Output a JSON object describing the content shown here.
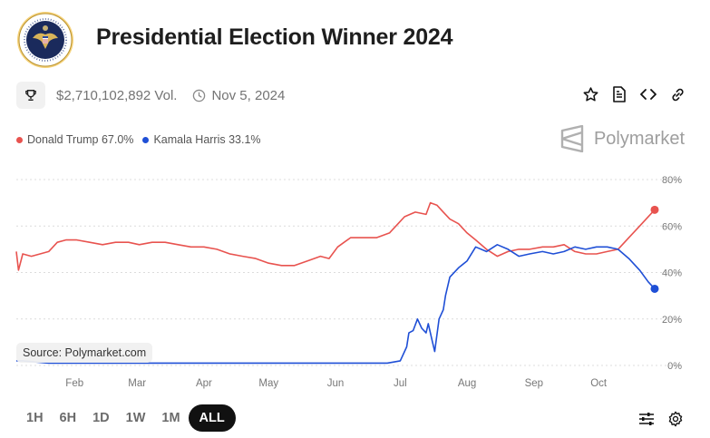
{
  "header": {
    "title": "Presidential Election Winner 2024",
    "seal_icon": "presidential-seal-icon"
  },
  "meta": {
    "volume": "$2,710,102,892 Vol.",
    "end_date": "Nov 5, 2024"
  },
  "legend": [
    {
      "label": "Donald Trump 67.0%",
      "color": "#e8534f"
    },
    {
      "label": "Kamala Harris 33.1%",
      "color": "#1f4fd6"
    }
  ],
  "brand": {
    "name": "Polymarket"
  },
  "source_label": "Source: Polymarket.com",
  "range_buttons": [
    "1H",
    "6H",
    "1D",
    "1W",
    "1M",
    "ALL"
  ],
  "active_range": "ALL",
  "chart_data": {
    "type": "line",
    "x_tick_labels": [
      "Feb",
      "Mar",
      "Apr",
      "May",
      "Jun",
      "Jul",
      "Aug",
      "Sep",
      "Oct"
    ],
    "y_tick_labels": [
      "80%",
      "60%",
      "40%",
      "20%",
      "0%"
    ],
    "ylim": [
      0,
      80
    ],
    "y_unit": "%",
    "grid": true,
    "x_range": [
      "2024-01-05",
      "2024-10-27"
    ],
    "series": [
      {
        "name": "Donald Trump",
        "color": "#e8534f",
        "x": [
          "2024-01-05",
          "2024-01-06",
          "2024-01-08",
          "2024-01-12",
          "2024-01-16",
          "2024-01-20",
          "2024-01-24",
          "2024-01-28",
          "2024-02-02",
          "2024-02-08",
          "2024-02-14",
          "2024-02-20",
          "2024-02-26",
          "2024-03-02",
          "2024-03-08",
          "2024-03-14",
          "2024-03-20",
          "2024-03-26",
          "2024-04-01",
          "2024-04-07",
          "2024-04-13",
          "2024-04-19",
          "2024-04-25",
          "2024-05-01",
          "2024-05-07",
          "2024-05-13",
          "2024-05-19",
          "2024-05-25",
          "2024-05-29",
          "2024-06-02",
          "2024-06-08",
          "2024-06-14",
          "2024-06-20",
          "2024-06-26",
          "2024-06-30",
          "2024-07-03",
          "2024-07-08",
          "2024-07-13",
          "2024-07-15",
          "2024-07-18",
          "2024-07-21",
          "2024-07-24",
          "2024-07-28",
          "2024-08-01",
          "2024-08-05",
          "2024-08-10",
          "2024-08-15",
          "2024-08-20",
          "2024-08-25",
          "2024-08-30",
          "2024-09-05",
          "2024-09-10",
          "2024-09-15",
          "2024-09-20",
          "2024-09-25",
          "2024-09-30",
          "2024-10-05",
          "2024-10-10",
          "2024-10-15",
          "2024-10-20",
          "2024-10-27"
        ],
        "values": [
          49,
          41,
          48,
          47,
          48,
          49,
          53,
          54,
          54,
          53,
          52,
          53,
          53,
          52,
          53,
          53,
          52,
          51,
          51,
          50,
          48,
          47,
          46,
          44,
          43,
          43,
          45,
          47,
          46,
          51,
          55,
          55,
          55,
          57,
          61,
          64,
          66,
          65,
          70,
          69,
          66,
          63,
          61,
          57,
          54,
          50,
          47,
          49,
          50,
          50,
          51,
          51,
          52,
          49,
          48,
          48,
          49,
          50,
          55,
          60,
          67
        ]
      },
      {
        "name": "Kamala Harris",
        "color": "#1f4fd6",
        "x": [
          "2024-01-05",
          "2024-01-08",
          "2024-01-20",
          "2024-02-01",
          "2024-02-15",
          "2024-03-01",
          "2024-03-15",
          "2024-04-01",
          "2024-04-15",
          "2024-05-01",
          "2024-05-15",
          "2024-06-01",
          "2024-06-15",
          "2024-06-25",
          "2024-07-01",
          "2024-07-04",
          "2024-07-05",
          "2024-07-07",
          "2024-07-09",
          "2024-07-11",
          "2024-07-13",
          "2024-07-14",
          "2024-07-16",
          "2024-07-17",
          "2024-07-19",
          "2024-07-21",
          "2024-07-22",
          "2024-07-24",
          "2024-07-28",
          "2024-08-01",
          "2024-08-05",
          "2024-08-10",
          "2024-08-15",
          "2024-08-20",
          "2024-08-25",
          "2024-08-30",
          "2024-09-05",
          "2024-09-10",
          "2024-09-15",
          "2024-09-20",
          "2024-09-25",
          "2024-09-30",
          "2024-10-05",
          "2024-10-10",
          "2024-10-15",
          "2024-10-20",
          "2024-10-24",
          "2024-10-27"
        ],
        "values": [
          2,
          2,
          1,
          1,
          1,
          1,
          1,
          1,
          1,
          1,
          1,
          1,
          1,
          1,
          2,
          8,
          14,
          15,
          20,
          16,
          14,
          18,
          10,
          6,
          20,
          24,
          30,
          38,
          42,
          45,
          51,
          49,
          52,
          50,
          47,
          48,
          49,
          48,
          49,
          51,
          50,
          51,
          51,
          50,
          46,
          41,
          36,
          33
        ]
      }
    ]
  }
}
